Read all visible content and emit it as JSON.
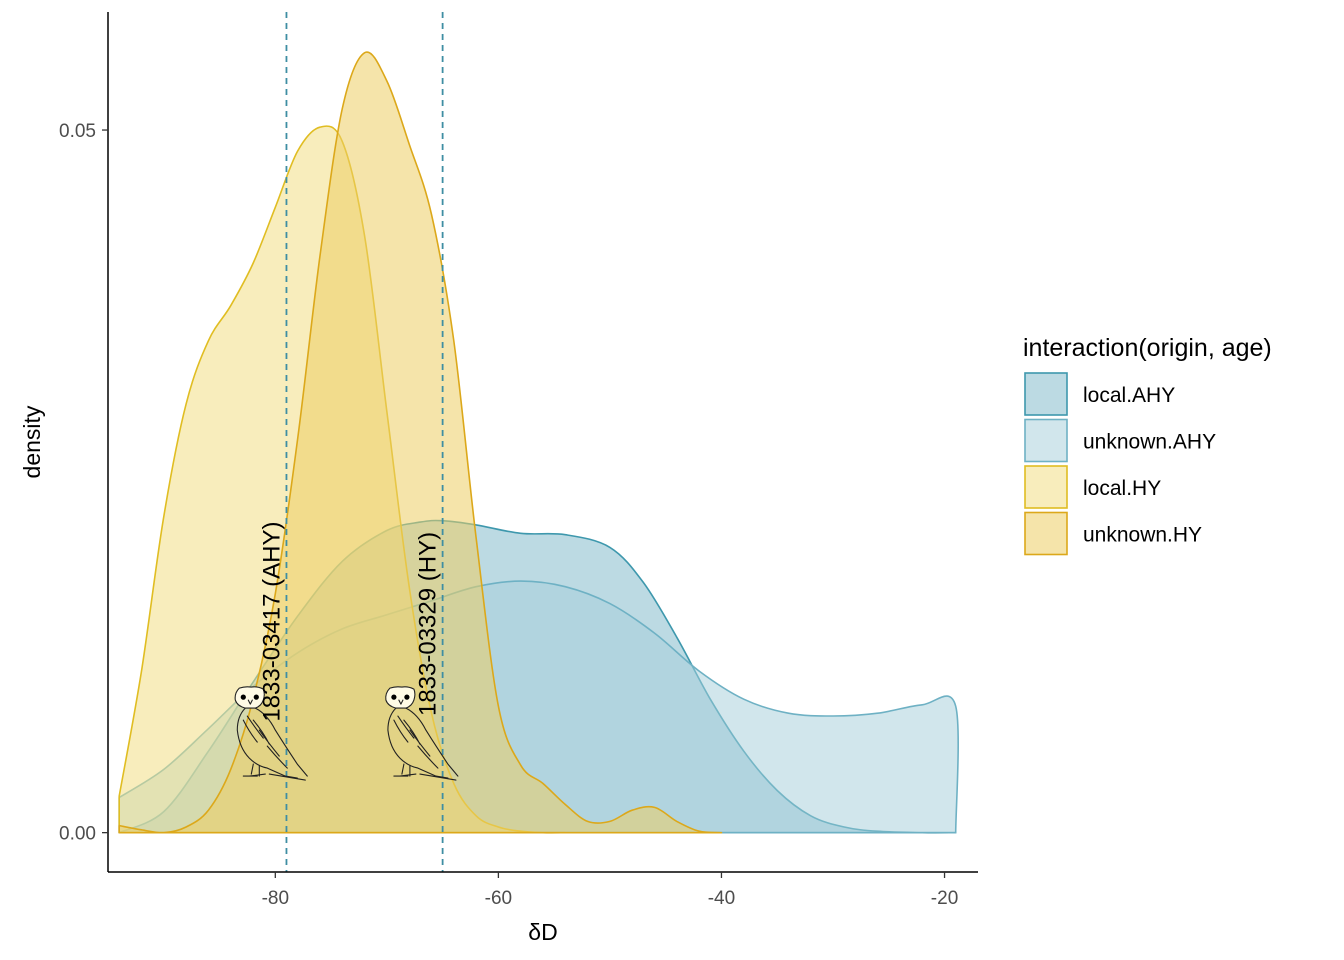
{
  "chart_data": {
    "type": "area",
    "title": "",
    "xlabel": "δD",
    "ylabel": "density",
    "xlim": [
      -95,
      -17
    ],
    "ylim": [
      -0.0028,
      0.0584
    ],
    "x_ticks": [
      -80,
      -60,
      -40,
      -20
    ],
    "x_tick_labels": [
      "-80",
      "-60",
      "-40",
      "-20"
    ],
    "y_ticks": [
      0.0,
      0.05
    ],
    "y_tick_labels": [
      "0.00",
      "0.05"
    ],
    "grid": false,
    "legend": {
      "title": "interaction(origin, age)",
      "position": "right"
    },
    "vlines": [
      {
        "x": -79,
        "color": "#3e8ea3",
        "style": "dashed"
      },
      {
        "x": -65,
        "color": "#3e8ea3",
        "style": "dashed"
      }
    ],
    "annotations": [
      {
        "text": "1833-03417 (AHY)",
        "x": -79,
        "y": 0.0079,
        "rotation": -90
      },
      {
        "text": "1833-03329 (HY)",
        "x": -65,
        "y": 0.0083,
        "rotation": -90
      }
    ],
    "icons": [
      {
        "name": "owl-icon",
        "x": -84.3,
        "y": 0.0036
      },
      {
        "name": "owl-icon",
        "x": -70.8,
        "y": 0.0036
      }
    ],
    "series": [
      {
        "name": "local.AHY",
        "fill": "#7fb8c9",
        "fill_opacity": 0.52,
        "stroke": "#3e98ad",
        "x": [
          -94,
          -90,
          -86,
          -82,
          -78,
          -74,
          -70,
          -67,
          -65,
          -62,
          -58,
          -54,
          -50,
          -47,
          -44,
          -41,
          -38,
          -35,
          -32,
          -29,
          -26,
          -22,
          -19
        ],
        "y": [
          0.0,
          0.0015,
          0.0058,
          0.0107,
          0.0154,
          0.0193,
          0.0215,
          0.0221,
          0.0222,
          0.0219,
          0.0213,
          0.0212,
          0.0203,
          0.0178,
          0.0139,
          0.0095,
          0.0058,
          0.003,
          0.0012,
          0.0004,
          0.0001,
          0.0,
          0.0
        ]
      },
      {
        "name": "unknown.AHY",
        "fill": "#a6cfdb",
        "fill_opacity": 0.52,
        "stroke": "#6eb1c4",
        "x": [
          -94,
          -90,
          -86,
          -82,
          -78,
          -74,
          -70,
          -66,
          -62,
          -58,
          -54,
          -50,
          -46,
          -42,
          -38,
          -34,
          -30,
          -26,
          -22,
          -19,
          -19
        ],
        "y": [
          0.0025,
          0.0045,
          0.0074,
          0.0104,
          0.0128,
          0.0145,
          0.0155,
          0.0165,
          0.0175,
          0.0179,
          0.0175,
          0.0163,
          0.0142,
          0.0115,
          0.0095,
          0.0085,
          0.0083,
          0.0085,
          0.0091,
          0.009,
          0.0
        ]
      },
      {
        "name": "local.HY",
        "fill": "#f2df85",
        "fill_opacity": 0.55,
        "stroke": "#e0bd22",
        "x": [
          -94,
          -92,
          -90,
          -88,
          -86,
          -84,
          -82,
          -80,
          -78,
          -76,
          -74,
          -72,
          -70,
          -68,
          -66,
          -64,
          -62,
          -60,
          -58,
          -56,
          -54
        ],
        "y": [
          0.0026,
          0.0115,
          0.0225,
          0.0305,
          0.035,
          0.0375,
          0.0405,
          0.0445,
          0.0485,
          0.0502,
          0.0492,
          0.0425,
          0.03,
          0.0175,
          0.0085,
          0.0035,
          0.0012,
          0.0004,
          0.0001,
          0.0,
          0.0
        ]
      },
      {
        "name": "unknown.HY",
        "fill": "#edcd64",
        "fill_opacity": 0.55,
        "stroke": "#dca81a",
        "x": [
          -94,
          -92,
          -90,
          -88,
          -86,
          -84,
          -82,
          -80,
          -78,
          -76,
          -74,
          -72,
          -70,
          -68,
          -66,
          -64,
          -62,
          -60,
          -58,
          -56,
          -54,
          -52,
          -50,
          -48,
          -46,
          -44,
          -42,
          -40
        ],
        "y": [
          0.0005,
          0.0002,
          0.0,
          0.0004,
          0.0016,
          0.0045,
          0.0095,
          0.017,
          0.028,
          0.041,
          0.0515,
          0.0555,
          0.0535,
          0.049,
          0.044,
          0.035,
          0.021,
          0.009,
          0.0048,
          0.0035,
          0.002,
          0.0008,
          0.0008,
          0.0016,
          0.0018,
          0.0008,
          0.0001,
          0.0
        ]
      }
    ]
  }
}
